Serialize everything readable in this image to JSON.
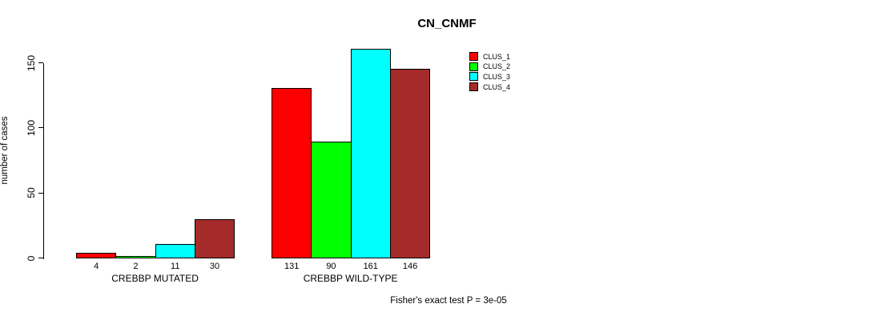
{
  "chart_data": {
    "type": "bar",
    "title": "CN_CNMF",
    "ylabel": "number of cases",
    "xlabel": "",
    "categories": [
      "CREBBP MUTATED",
      "CREBBP WILD-TYPE"
    ],
    "series": [
      {
        "name": "CLUS_1",
        "color": "#ff0000",
        "values": [
          4,
          131
        ]
      },
      {
        "name": "CLUS_2",
        "color": "#00ff00",
        "values": [
          2,
          90
        ]
      },
      {
        "name": "CLUS_3",
        "color": "#00ffff",
        "values": [
          11,
          161
        ]
      },
      {
        "name": "CLUS_4",
        "color": "#a52a2a",
        "values": [
          30,
          146
        ]
      }
    ],
    "bar_value_labels_shown": true,
    "yticks": [
      0,
      50,
      100,
      150
    ],
    "ylim": [
      0,
      163
    ],
    "grid": false,
    "legend_position": "top-right",
    "annotation": "Fisher's exact test P = 3e-05"
  }
}
